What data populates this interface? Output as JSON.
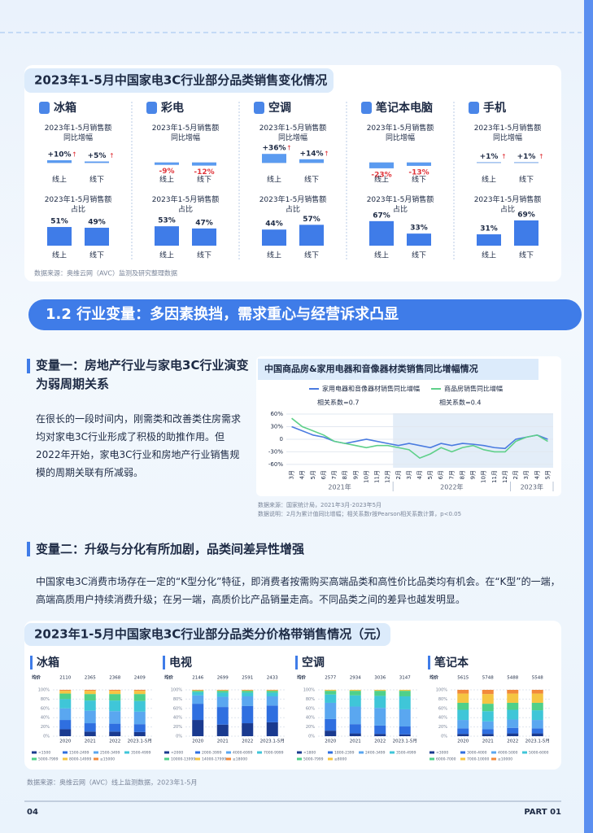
{
  "sales_change": {
    "title": "2023年1-5月中国家电3C行业部分品类销售变化情况",
    "growth_label": "2023年1-5月销售额同比增幅",
    "share_label": "2023年1-5月销售额占比",
    "channels": [
      "线上",
      "线下"
    ],
    "categories": [
      {
        "name": "冰箱",
        "growth": [
          10,
          5
        ],
        "growth_labels": [
          "+10%",
          "+5%"
        ],
        "share": [
          51,
          49
        ],
        "share_labels": [
          "51%",
          "49%"
        ]
      },
      {
        "name": "彩电",
        "growth": [
          -9,
          -12
        ],
        "growth_labels": [
          "-9%",
          "-12%"
        ],
        "share": [
          53,
          47
        ],
        "share_labels": [
          "53%",
          "47%"
        ]
      },
      {
        "name": "空调",
        "growth": [
          36,
          14
        ],
        "growth_labels": [
          "+36%",
          "+14%"
        ],
        "share": [
          44,
          57
        ],
        "share_labels": [
          "44%",
          "57%"
        ]
      },
      {
        "name": "笔记本电脑",
        "growth": [
          -23,
          -13
        ],
        "growth_labels": [
          "-23%",
          "-13%"
        ],
        "share": [
          67,
          33
        ],
        "share_labels": [
          "67%",
          "33%"
        ]
      },
      {
        "name": "手机",
        "growth": [
          1,
          1
        ],
        "growth_labels": [
          "+1%",
          "+1%"
        ],
        "share": [
          31,
          69
        ],
        "share_labels": [
          "31%",
          "69%"
        ]
      }
    ],
    "source": "数据来源：奥维云网（AVC）监测及研究整理数据"
  },
  "section_heading": "1.2 行业变量：多因素换挡，需求重心与经营诉求凸显",
  "variable1": {
    "title": "变量一：房地产行业与家电3C行业演变为弱周期关系",
    "text": "在很长的一段时间内，刚需类和改善类住房需求均对家电3C行业形成了积极的助推作用。但2022年开始，家电3C行业和房地产行业销售规模的周期关联有所减弱。"
  },
  "variable2": {
    "title": "变量二：升级与分化有所加剧，品类间差异性增强",
    "text": "中国家电3C消费市场存在一定的“K型分化”特征，即消费者按需购买高端品类和高性价比品类均有机会。在“K型”的一端，高端高质用户持续消费升级；在另一端，高质价比产品销量走高。不同品类之间的差异也越发明显。"
  },
  "chart_data": [
    {
      "type": "line",
      "title": "中国商品房&家用电器和音像器材类销售同比增幅情况",
      "categories": [
        "3月",
        "4月",
        "5月",
        "6月",
        "7月",
        "8月",
        "9月",
        "10月",
        "11月",
        "12月",
        "2月",
        "3月",
        "4月",
        "5月",
        "6月",
        "7月",
        "8月",
        "9月",
        "10月",
        "11月",
        "12月",
        "2月",
        "3月",
        "4月",
        "5月"
      ],
      "year_labels": [
        "2021年",
        "2022年",
        "2023年"
      ],
      "series": [
        {
          "name": "家用电器和音像器材销售同比增幅",
          "color": "#4a7be0",
          "values": [
            30,
            20,
            10,
            5,
            -5,
            -10,
            -5,
            0,
            -5,
            -10,
            -15,
            -10,
            -15,
            -20,
            -10,
            -15,
            -10,
            -12,
            -15,
            -20,
            -22,
            0,
            5,
            10,
            0
          ]
        },
        {
          "name": "商品房销售同比增幅",
          "color": "#5fd08a",
          "values": [
            50,
            30,
            20,
            10,
            -5,
            -10,
            -15,
            -20,
            -15,
            -15,
            -20,
            -25,
            -45,
            -35,
            -20,
            -30,
            -20,
            -15,
            -25,
            -30,
            -30,
            -5,
            5,
            10,
            -5
          ]
        }
      ],
      "annotations": [
        "相关系数=0.7",
        "相关系数=0.4"
      ],
      "ylim": [
        -68,
        62
      ],
      "yticks": [
        {
          "value": 60,
          "label": "60%"
        },
        {
          "value": 30,
          "label": "30%"
        },
        0,
        {
          "value": -30,
          "label": "-30%"
        },
        {
          "value": -60,
          "label": "-60%"
        }
      ],
      "notes": [
        "数据来源：国家统计局，2021年3月-2023年5月",
        "数据说明：2月为累计值同比增幅；相关系数r按Pearson相关系数计算，p<0.05"
      ]
    },
    {
      "type": "stacked_bar",
      "title": "冰箱",
      "avg_label": "均价",
      "avg_prices": [
        2110,
        2365,
        2368,
        2409
      ],
      "categories": [
        "2020",
        "2021",
        "2022",
        "2023.1-5月"
      ],
      "ylim": [
        0,
        100
      ],
      "yticks": [
        {
          "value": 0,
          "label": "0%"
        },
        {
          "value": 20,
          "label": "20%"
        },
        {
          "value": 40,
          "label": "40%"
        },
        {
          "value": 60,
          "label": "60%"
        },
        {
          "value": 80,
          "label": "80%"
        },
        {
          "value": 100,
          "label": "100%"
        }
      ],
      "series": [
        {
          "name": "<1500",
          "color": "#1a3a8f",
          "values": [
            15,
            10,
            10,
            9
          ]
        },
        {
          "name": "1500-2499",
          "color": "#2f6fe0",
          "values": [
            20,
            18,
            17,
            17
          ]
        },
        {
          "name": "2500-3499",
          "color": "#5aa7f0",
          "values": [
            25,
            27,
            27,
            27
          ]
        },
        {
          "name": "3500-4999",
          "color": "#3fc6d8",
          "values": [
            20,
            22,
            23,
            23
          ]
        },
        {
          "name": "5000-7999",
          "color": "#4fd08a",
          "values": [
            12,
            14,
            14,
            15
          ]
        },
        {
          "name": "8000-14999",
          "color": "#f5c542",
          "values": [
            6,
            7,
            7,
            7
          ]
        },
        {
          "name": "≥15000",
          "color": "#f28a3c",
          "values": [
            2,
            2,
            2,
            2
          ]
        }
      ]
    },
    {
      "type": "stacked_bar",
      "title": "电视",
      "avg_label": "均价",
      "avg_prices": [
        2146,
        2699,
        2591,
        2433
      ],
      "categories": [
        "2020",
        "2021",
        "2022",
        "2023.1-5月"
      ],
      "ylim": [
        0,
        100
      ],
      "yticks": [
        {
          "value": 0,
          "label": "0%"
        },
        {
          "value": 20,
          "label": "20%"
        },
        {
          "value": 40,
          "label": "40%"
        },
        {
          "value": 60,
          "label": "60%"
        },
        {
          "value": 80,
          "label": "80%"
        },
        {
          "value": 100,
          "label": "100%"
        }
      ],
      "series": [
        {
          "name": "<2000",
          "color": "#1a3a8f",
          "values": [
            35,
            25,
            28,
            30
          ]
        },
        {
          "name": "2000-3999",
          "color": "#2f6fe0",
          "values": [
            35,
            38,
            37,
            36
          ]
        },
        {
          "name": "4000-6999",
          "color": "#5aa7f0",
          "values": [
            18,
            22,
            21,
            20
          ]
        },
        {
          "name": "7000-9999",
          "color": "#3fc6d8",
          "values": [
            7,
            9,
            8,
            8
          ]
        },
        {
          "name": "10000-13999",
          "color": "#4fd08a",
          "values": [
            3,
            4,
            4,
            4
          ]
        },
        {
          "name": "14000-17999",
          "color": "#f5c542",
          "values": [
            1,
            1,
            1,
            1
          ]
        },
        {
          "name": "≥18000",
          "color": "#f28a3c",
          "values": [
            1,
            1,
            1,
            1
          ]
        }
      ]
    },
    {
      "type": "stacked_bar",
      "title": "空调",
      "avg_label": "均价",
      "avg_prices": [
        2577,
        2934,
        3036,
        3147
      ],
      "categories": [
        "2020",
        "2021",
        "2022",
        "2023.1-5月"
      ],
      "ylim": [
        0,
        100
      ],
      "yticks": [
        {
          "value": 0,
          "label": "0%"
        },
        {
          "value": 20,
          "label": "20%"
        },
        {
          "value": 40,
          "label": "40%"
        },
        {
          "value": 60,
          "label": "60%"
        },
        {
          "value": 80,
          "label": "80%"
        },
        {
          "value": 100,
          "label": "100%"
        }
      ],
      "series": [
        {
          "name": "<1800",
          "color": "#1a3a8f",
          "values": [
            12,
            6,
            5,
            4
          ]
        },
        {
          "name": "1800-2399",
          "color": "#2f6fe0",
          "values": [
            25,
            20,
            18,
            17
          ]
        },
        {
          "name": "2400-3499",
          "color": "#5aa7f0",
          "values": [
            35,
            38,
            38,
            37
          ]
        },
        {
          "name": "3500-4999",
          "color": "#3fc6d8",
          "values": [
            18,
            24,
            26,
            28
          ]
        },
        {
          "name": "5000-7999",
          "color": "#4fd08a",
          "values": [
            8,
            10,
            11,
            12
          ]
        },
        {
          "name": "≥8000",
          "color": "#f5c542",
          "values": [
            2,
            2,
            2,
            2
          ]
        }
      ]
    },
    {
      "type": "stacked_bar",
      "title": "笔记本",
      "avg_label": "均价",
      "avg_prices": [
        5615,
        5748,
        5488,
        5548
      ],
      "categories": [
        "2020",
        "2021",
        "2022",
        "2023.1-5月"
      ],
      "ylim": [
        0,
        100
      ],
      "yticks": [
        {
          "value": 0,
          "label": "0%"
        },
        {
          "value": 20,
          "label": "20%"
        },
        {
          "value": 40,
          "label": "40%"
        },
        {
          "value": 60,
          "label": "60%"
        },
        {
          "value": 80,
          "label": "80%"
        },
        {
          "value": 100,
          "label": "100%"
        }
      ],
      "series": [
        {
          "name": "<3000",
          "color": "#1a3a8f",
          "values": [
            5,
            5,
            6,
            6
          ]
        },
        {
          "name": "3000-4000",
          "color": "#2f6fe0",
          "values": [
            12,
            10,
            12,
            11
          ]
        },
        {
          "name": "4000-5000",
          "color": "#5aa7f0",
          "values": [
            18,
            17,
            18,
            18
          ]
        },
        {
          "name": "5000-6000",
          "color": "#3fc6d8",
          "values": [
            22,
            22,
            21,
            21
          ]
        },
        {
          "name": "6000-7000",
          "color": "#4fd08a",
          "values": [
            15,
            16,
            15,
            16
          ]
        },
        {
          "name": "7000-10000",
          "color": "#f5c542",
          "values": [
            20,
            21,
            20,
            20
          ]
        },
        {
          "name": "≥10000",
          "color": "#f28a3c",
          "values": [
            8,
            9,
            8,
            8
          ]
        }
      ]
    }
  ],
  "price_section": {
    "title": "2023年1-5月中国家电3C行业部分品类分价格带销售情况（元）",
    "source": "数据来源：奥维云网（AVC）线上监测数据，2023年1-5月"
  },
  "footer": {
    "page": "04",
    "part": "PART 01"
  }
}
